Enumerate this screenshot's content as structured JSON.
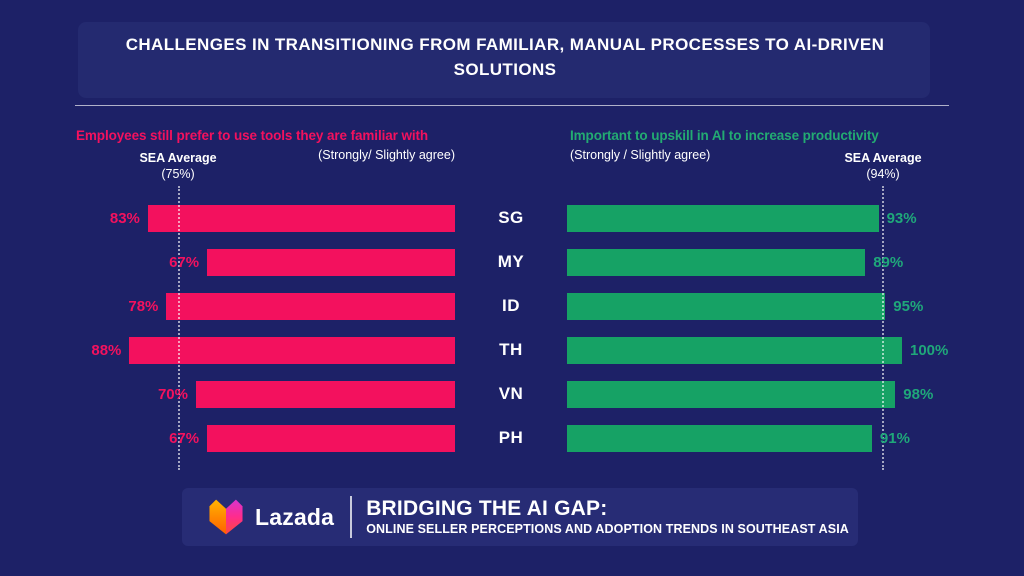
{
  "page": {
    "title": "CHALLENGES IN TRANSITIONING FROM FAMILIAR, MANUAL PROCESSES TO AI-DRIVEN SOLUTIONS"
  },
  "colors": {
    "background": "#1D2167",
    "panel": "#242A70",
    "pink": "#F3115E",
    "green_bar": "#16A265",
    "green_text": "#1FA87A",
    "white": "#FFFFFF"
  },
  "countries": [
    "SG",
    "MY",
    "ID",
    "TH",
    "VN",
    "PH"
  ],
  "chart_data": [
    {
      "type": "bar",
      "orientation": "horizontal",
      "direction": "right-to-left",
      "title": "Employees still prefer to use tools they are familiar with",
      "subtitle": "(Strongly/ Slightly agree)",
      "categories": [
        "SG",
        "MY",
        "ID",
        "TH",
        "VN",
        "PH"
      ],
      "values": [
        83,
        67,
        78,
        88,
        70,
        67
      ],
      "value_suffix": "%",
      "reference_line": {
        "label": "SEA Average",
        "value_label": "(75%)",
        "value": 75
      },
      "xlim": [
        0,
        100
      ],
      "grid": false,
      "bar_color": "#F3115E",
      "label_color": "#F3115E"
    },
    {
      "type": "bar",
      "orientation": "horizontal",
      "direction": "left-to-right",
      "title": "Important to upskill in AI to increase productivity",
      "subtitle": "(Strongly / Slightly agree)",
      "categories": [
        "SG",
        "MY",
        "ID",
        "TH",
        "VN",
        "PH"
      ],
      "values": [
        93,
        89,
        95,
        100,
        98,
        91
      ],
      "value_suffix": "%",
      "reference_line": {
        "label": "SEA Average",
        "value_label": "(94%)",
        "value": 94
      },
      "xlim": [
        0,
        100
      ],
      "grid": false,
      "bar_color": "#16A265",
      "label_color": "#1FA87A"
    }
  ],
  "footer": {
    "brand": "Lazada",
    "title": "BRIDGING THE AI GAP:",
    "subtitle": "ONLINE SELLER PERCEPTIONS AND ADOPTION TRENDS IN SOUTHEAST ASIA"
  }
}
